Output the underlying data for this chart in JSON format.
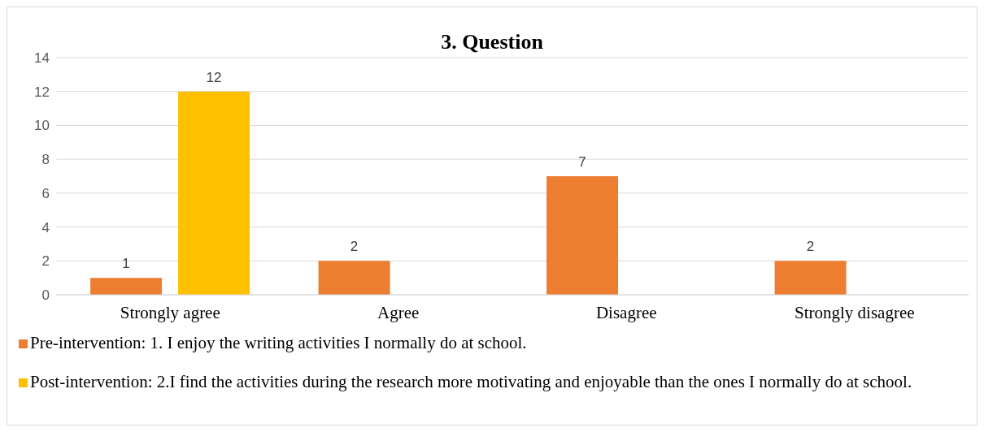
{
  "chart_data": {
    "type": "bar",
    "title": "3. Question",
    "categories": [
      "Strongly agree",
      "Agree",
      "Disagree",
      "Strongly disagree"
    ],
    "series": [
      {
        "name": "Pre-intervention: 1. I enjoy the writing activities I normally do at school.",
        "color": "#ed7d31",
        "values": [
          1,
          2,
          7,
          2
        ]
      },
      {
        "name": "Post-intervention: 2.I find the activities during the research more motivating and enjoyable than the ones I normally do at school.",
        "color": "#ffc000",
        "values": [
          12,
          null,
          null,
          null
        ]
      }
    ],
    "ylim": [
      0,
      14
    ],
    "yticks": [
      0,
      2,
      4,
      6,
      8,
      10,
      12,
      14
    ],
    "grid": "y",
    "legend": "bottom",
    "data_labels": true
  }
}
